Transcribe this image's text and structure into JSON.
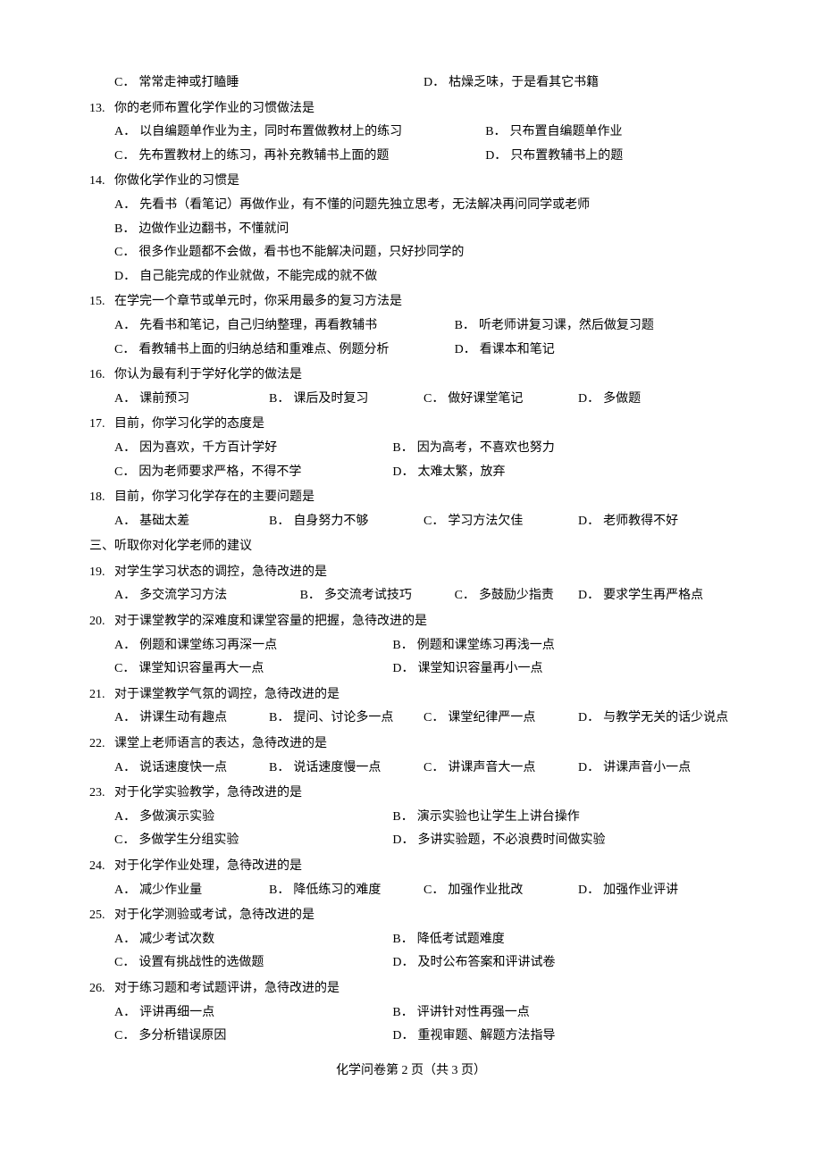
{
  "q12": {
    "optC": "常常走神或打瞌睡",
    "optD": "枯燥乏味，于是看其它书籍"
  },
  "q13": {
    "num": "13.",
    "stem": "你的老师布置化学作业的习惯做法是",
    "optA": "以自编题单作业为主，同时布置做教材上的练习",
    "optB": "只布置自编题单作业",
    "optC": "先布置教材上的练习，再补充教辅书上面的题",
    "optD": "只布置教辅书上的题"
  },
  "q14": {
    "num": "14.",
    "stem": "你做化学作业的习惯是",
    "optA": "先看书（看笔记）再做作业，有不懂的问题先独立思考，无法解决再问同学或老师",
    "optB": "边做作业边翻书，不懂就问",
    "optC": "很多作业题都不会做，看书也不能解决问题，只好抄同学的",
    "optD": "自己能完成的作业就做，不能完成的就不做"
  },
  "q15": {
    "num": "15.",
    "stem": "在学完一个章节或单元时，你采用最多的复习方法是",
    "optA": "先看书和笔记，自己归纳整理，再看教辅书",
    "optB": "听老师讲复习课，然后做复习题",
    "optC": "看教辅书上面的归纳总结和重难点、例题分析",
    "optD": "看课本和笔记"
  },
  "q16": {
    "num": "16.",
    "stem": "你认为最有利于学好化学的做法是",
    "optA": "课前预习",
    "optB": "课后及时复习",
    "optC": "做好课堂笔记",
    "optD": "多做题"
  },
  "q17": {
    "num": "17.",
    "stem": "目前，你学习化学的态度是",
    "optA": "因为喜欢，千方百计学好",
    "optB": "因为高考，不喜欢也努力",
    "optC": "因为老师要求严格，不得不学",
    "optD": "太难太繁，放弃"
  },
  "q18": {
    "num": "18.",
    "stem": "目前，你学习化学存在的主要问题是",
    "optA": "基础太差",
    "optB": "自身努力不够",
    "optC": "学习方法欠佳",
    "optD": "老师教得不好"
  },
  "section3": "三、听取你对化学老师的建议",
  "q19": {
    "num": "19.",
    "stem": "对学生学习状态的调控，急待改进的是",
    "optA": "多交流学习方法",
    "optB": "多交流考试技巧",
    "optC": "多鼓励少指责",
    "optD": "要求学生再严格点"
  },
  "q20": {
    "num": "20.",
    "stem": "对于课堂教学的深难度和课堂容量的把握，急待改进的是",
    "optA": "例题和课堂练习再深一点",
    "optB": "例题和课堂练习再浅一点",
    "optC": "课堂知识容量再大一点",
    "optD": "课堂知识容量再小一点"
  },
  "q21": {
    "num": "21.",
    "stem": "对于课堂教学气氛的调控，急待改进的是",
    "optA": "讲课生动有趣点",
    "optB": "提问、讨论多一点",
    "optC": "课堂纪律严一点",
    "optD": "与教学无关的话少说点"
  },
  "q22": {
    "num": "22.",
    "stem": "课堂上老师语言的表达，急待改进的是",
    "optA": "说话速度快一点",
    "optB": "说话速度慢一点",
    "optC": "讲课声音大一点",
    "optD": "讲课声音小一点"
  },
  "q23": {
    "num": "23.",
    "stem": "对于化学实验教学，急待改进的是",
    "optA": "多做演示实验",
    "optB": "演示实验也让学生上讲台操作",
    "optC": "多做学生分组实验",
    "optD": "多讲实验题，不必浪费时间做实验"
  },
  "q24": {
    "num": "24.",
    "stem": "对于化学作业处理，急待改进的是",
    "optA": "减少作业量",
    "optB": "降低练习的难度",
    "optC": "加强作业批改",
    "optD": "加强作业评讲"
  },
  "q25": {
    "num": "25.",
    "stem": "对于化学测验或考试，急待改进的是",
    "optA": "减少考试次数",
    "optB": "降低考试题难度",
    "optC": "设置有挑战性的选做题",
    "optD": "及时公布答案和评讲试卷"
  },
  "q26": {
    "num": "26.",
    "stem": "对于练习题和考试题评讲，急待改进的是",
    "optA": "评讲再细一点",
    "optB": "评讲针对性再强一点",
    "optC": "多分析错误原因",
    "optD": "重视审题、解题方法指导"
  },
  "footer": "化学问卷第 2 页（共 3 页）",
  "labels": {
    "A": "A．",
    "B": "B．",
    "C": "C．",
    "D": "D．"
  }
}
